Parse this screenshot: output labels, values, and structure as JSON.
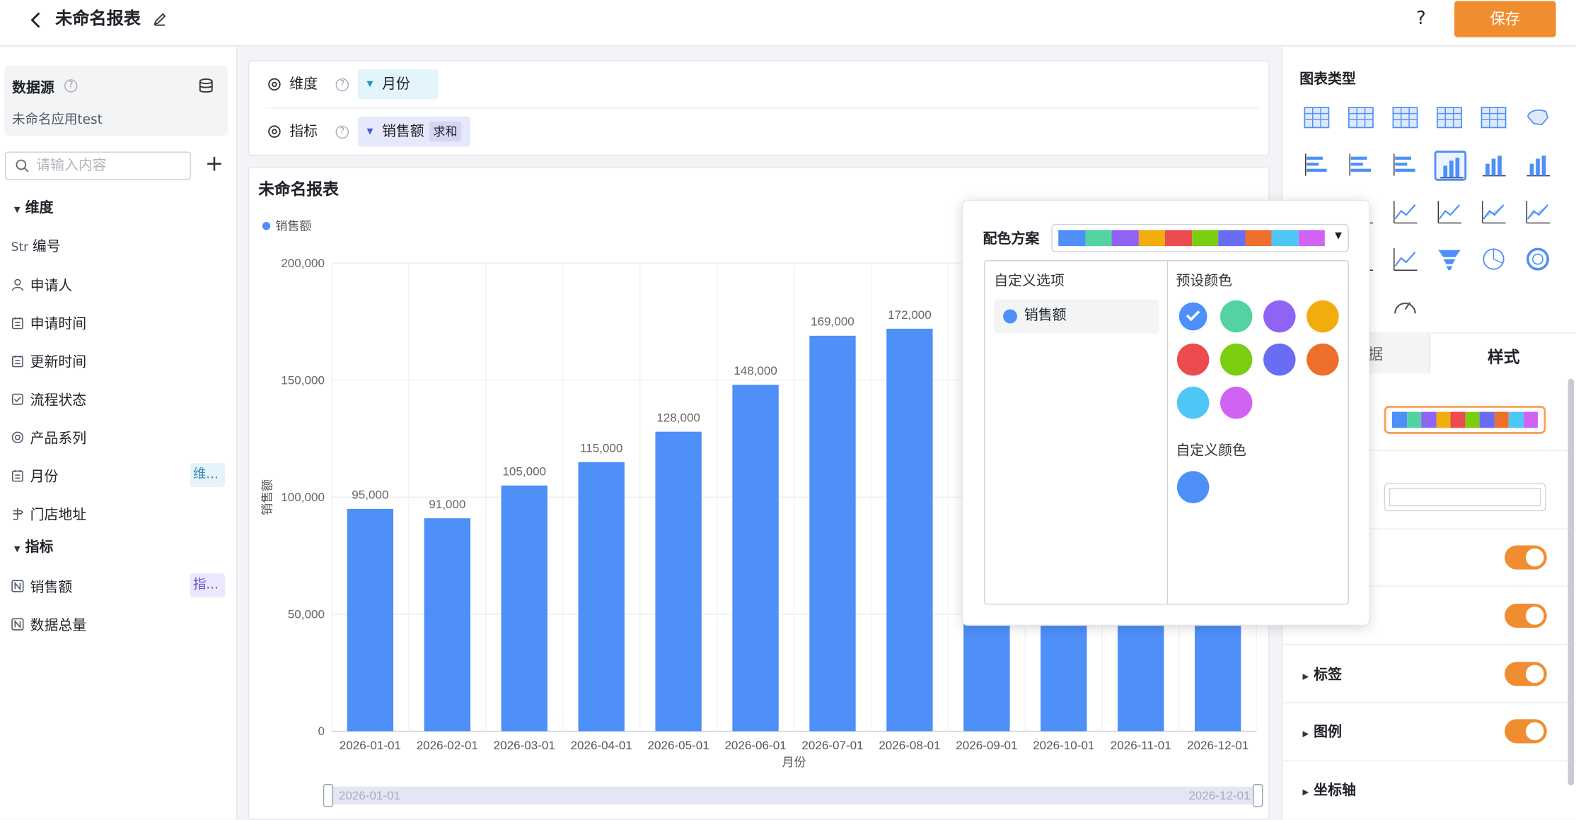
{
  "header": {
    "title": "未命名报表",
    "help": "?",
    "save_label": "保存"
  },
  "datasource": {
    "title": "数据源",
    "name": "未命名应用test"
  },
  "search": {
    "placeholder": "请输入内容"
  },
  "dimensions": {
    "section_label": "维度",
    "items": [
      {
        "prefix": "Str",
        "label": "编号",
        "icon": "text-type-icon"
      },
      {
        "label": "申请人",
        "icon": "person-icon"
      },
      {
        "label": "申请时间",
        "icon": "calendar-icon"
      },
      {
        "label": "更新时间",
        "icon": "calendar-icon"
      },
      {
        "label": "流程状态",
        "icon": "checkbox-icon"
      },
      {
        "label": "产品系列",
        "icon": "radio-icon"
      },
      {
        "label": "月份",
        "icon": "calendar-icon",
        "tag": "维..."
      },
      {
        "label": "门店地址",
        "icon": "location-icon"
      }
    ]
  },
  "measures": {
    "section_label": "指标",
    "items": [
      {
        "label": "销售额",
        "icon": "number-icon",
        "tag": "指..."
      },
      {
        "label": "数据总量",
        "icon": "number-icon"
      }
    ]
  },
  "config": {
    "dimension_label": "维度",
    "dimension_value": "月份",
    "measure_label": "指标",
    "measure_value": "销售额",
    "measure_agg": "求和"
  },
  "chart_data": {
    "type": "bar",
    "title": "未命名报表",
    "legend": [
      "销售额"
    ],
    "legend_position": "top-left",
    "xlabel": "月份",
    "ylabel": "销售额",
    "ylim": [
      0,
      200000
    ],
    "yticks": [
      "0",
      "50,000",
      "100,000",
      "150,000",
      "200,000"
    ],
    "categories": [
      "2026-01-01",
      "2026-02-01",
      "2026-03-01",
      "2026-04-01",
      "2026-05-01",
      "2026-06-01",
      "2026-07-01",
      "2026-08-01",
      "2026-09-01",
      "2026-10-01",
      "2026-11-01",
      "2026-12-01"
    ],
    "values": [
      95000,
      91000,
      105000,
      115000,
      128000,
      148000,
      169000,
      172000,
      null,
      null,
      null,
      null
    ],
    "value_labels": [
      "95,000",
      "91,000",
      "105,000",
      "115,000",
      "128,000",
      "148,000",
      "169,000",
      "172,000",
      "",
      "",
      "",
      ""
    ],
    "color": "#4e8ff8",
    "grid": true,
    "range_slider": {
      "start": "2026-01-01",
      "end": "2026-12-01"
    }
  },
  "rightpanel": {
    "chart_type_label": "图表类型",
    "tabs": [
      "数据",
      "样式"
    ],
    "sections": [
      "标签",
      "图例",
      "坐标轴"
    ]
  },
  "color_popup": {
    "scheme_label": "配色方案",
    "scheme_colors": [
      "#4e8ff8",
      "#52d3a1",
      "#8f63f5",
      "#f0ad0d",
      "#ec4b4f",
      "#7bcd0f",
      "#6a6cf4",
      "#ee6f2c",
      "#4ec6f6",
      "#d063f3"
    ],
    "custom_options_label": "自定义选项",
    "custom_option_item": "销售额",
    "preset_label": "预设颜色",
    "preset_colors": [
      "#4e8ff8",
      "#52d3a1",
      "#8f63f5",
      "#f0ad0d",
      "#ec4b4f",
      "#7bcd0f",
      "#6a6cf4",
      "#ee6f2c",
      "#4ec6f6",
      "#d063f3"
    ],
    "selected_preset": 0,
    "custom_color_label": "自定义颜色",
    "custom_color": "#4e8ff8"
  }
}
